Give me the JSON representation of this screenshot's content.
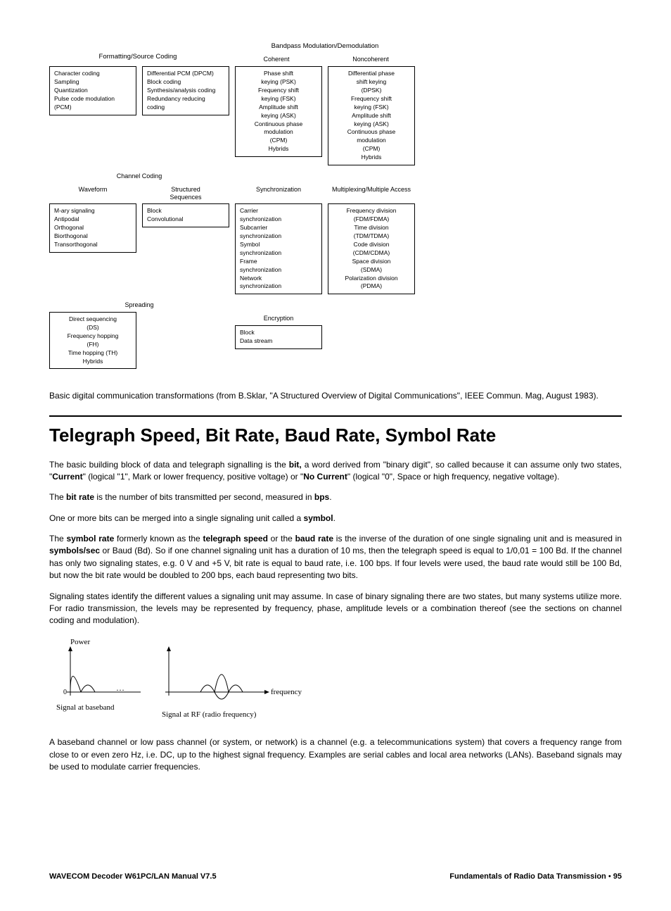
{
  "diagram": {
    "top_right_title": "Bandpass Modulation/Demodulation",
    "row1": {
      "left_title": "Formatting/Source Coding",
      "coherent": "Coherent",
      "noncoherent": "Noncoherent",
      "box1": [
        "Character coding",
        "Sampling",
        "Quantization",
        "Pulse code modulation (PCM)"
      ],
      "box2": [
        "Differential PCM (DPCM)",
        "Block coding",
        "Synthesis/analysis coding",
        "Redundancy reducing coding"
      ],
      "box3": [
        "Phase shift",
        "keying (PSK)",
        "Frequency shift",
        "keying (FSK)",
        "Amplitude shift",
        "keying (ASK)",
        "Continuous phase",
        "modulation",
        "(CPM)",
        "Hybrids"
      ],
      "box4": [
        "Differential phase",
        "shift keying",
        "(DPSK)",
        "Frequency shift",
        "keying (FSK)",
        "Amplitude shift",
        "keying (ASK)",
        "Continuous phase",
        "modulation",
        "(CPM)",
        "Hybrids"
      ]
    },
    "row2": {
      "channel_coding": "Channel Coding",
      "waveform": "Waveform",
      "structured": "Structured\nSequences",
      "sync": "Synchronization",
      "multiplex": "Multiplexing/Multiple Access",
      "box_wave": [
        "M-ary signaling",
        "Antipodal",
        "Orthogonal",
        "Biorthogonal",
        "Transorthogonal"
      ],
      "box_struct": [
        "Block",
        "Convolutional"
      ],
      "box_sync": [
        "Carrier",
        "synchronization",
        "Subcarrier",
        "synchronization",
        "Symbol",
        "synchronization",
        "Frame",
        "synchronization",
        "Network",
        "synchronization"
      ],
      "box_mux": [
        "Frequency division",
        "(FDM/FDMA)",
        "Time division",
        "(TDM/TDMA)",
        "Code division",
        "(CDM/CDMA)",
        "Space division",
        "(SDMA)",
        "Polarization division",
        "(PDMA)"
      ]
    },
    "row3": {
      "spreading": "Spreading",
      "box_spread": [
        "Direct sequencing",
        "(DS)",
        "Frequency hopping",
        "(FH)",
        "Time hopping (TH)",
        "Hybrids"
      ],
      "encryption": "Encryption",
      "box_enc": [
        "Block",
        "Data stream"
      ]
    }
  },
  "caption": "Basic digital communication transformations (from B.Sklar, \"A Structured Overview of Digital Communications\", IEEE Commun. Mag, August 1983).",
  "heading": "Telegraph Speed, Bit Rate, Baud Rate, Symbol Rate",
  "para1": {
    "t1": "The basic building block of data and telegraph signalling is the ",
    "b1": "bit,",
    "t2": " a word derived from \"binary digit\", so called because it can assume only two states, \"",
    "b2": "Current",
    "t3": "\" (logical \"1\", Mark or lower frequency, positive voltage)  or \"",
    "b3": "No Current",
    "t4": "\" (logical \"0\", Space or high frequency, negative voltage)."
  },
  "para2": {
    "t1": "The ",
    "b1": "bit rate",
    "t2": " is the number of bits transmitted per second, measured in ",
    "b2": "bps",
    "t3": "."
  },
  "para3": {
    "t1": "One or more bits can be merged into a single signaling unit called a ",
    "b1": "symbol",
    "t2": "."
  },
  "para4": {
    "t1": "The ",
    "b1": "symbol rate",
    "t2": " formerly known as the ",
    "b2": "telegraph speed",
    "t3": " or the ",
    "b3": "baud rate",
    "t4": " is the inverse of the duration of one single signaling unit and is measured in ",
    "b4": "symbols/sec",
    "t5": " or Baud (Bd). So if one channel signaling unit has a duration of 10 ms, then the telegraph speed is equal to 1/0,01 = 100 Bd. If the channel has only two signaling states, e.g. 0 V and +5 V, bit rate is equal to baud rate, i.e. 100 bps. If four levels were used, the baud rate would still be 100 Bd, but now the bit rate would be doubled to 200 bps, each baud representing two bits."
  },
  "para5": "Signaling states identify the different values a signaling unit may assume. In case of binary signaling there are two states, but many systems utilize more. For radio transmission, the levels may be represented by frequency, phase, amplitude levels or a combination thereof (see the sections on channel coding and modulation).",
  "signal": {
    "power": "Power",
    "zero": "0",
    "dots": "…",
    "freq": "frequency",
    "baseband": "Signal at baseband",
    "rf": "Signal at RF (radio frequency)",
    "color": "#000000",
    "stroke": 1
  },
  "para6": "A baseband channel or low pass channel (or system, or network) is a channel (e.g. a telecommunications system) that covers a frequency range from close to or even zero Hz, i.e. DC, up to the highest signal frequency. Examples are serial cables and local area networks (LANs). Baseband signals may be used to modulate carrier frequencies.",
  "footer": {
    "left": "WAVECOM Decoder W61PC/LAN Manual V7.5",
    "right_label": "Fundamentals of Radio Data Transmission",
    "bullet": "•",
    "page": "95"
  },
  "style": {
    "body_fontsize": 12,
    "heading_fontsize": 26,
    "diagram_fontsize": 9,
    "text_color": "#000000",
    "bg_color": "#ffffff"
  }
}
